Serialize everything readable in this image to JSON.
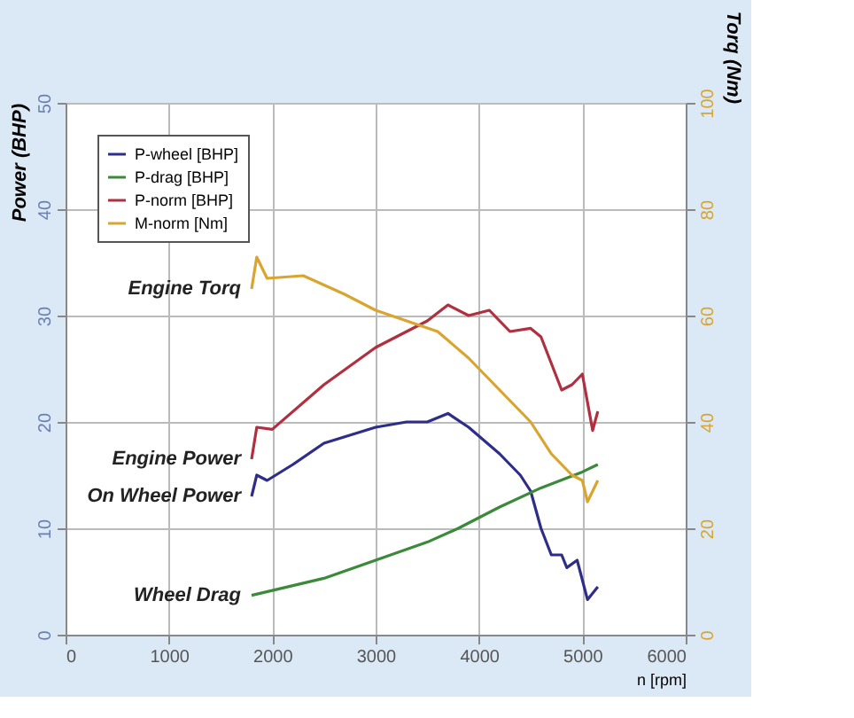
{
  "chart_data": {
    "type": "line",
    "xlabel": "n [rpm]",
    "ylabel": "Power (BHP)",
    "y2label": "Torq (Nm)",
    "xlim": [
      0,
      6000
    ],
    "xticks": [
      0,
      1000,
      2000,
      3000,
      4000,
      5000,
      6000
    ],
    "ylim": [
      0,
      50
    ],
    "yticks": [
      0,
      10,
      20,
      30,
      40,
      50
    ],
    "y2lim": [
      0,
      100
    ],
    "y2ticks": [
      0,
      20,
      40,
      60,
      80,
      100
    ],
    "grid": true,
    "legend": "top left",
    "line_style": "solid",
    "marker": "none",
    "series": [
      {
        "name": "P-wheel [BHP]",
        "color": "#2e2e8a",
        "x": [
          1800,
          1850,
          1950,
          2200,
          2500,
          3000,
          3300,
          3500,
          3700,
          3900,
          4200,
          4400,
          4500,
          4600,
          4700,
          4800,
          4850,
          4950,
          5050,
          5150
        ],
        "values": [
          13,
          15,
          14.5,
          16,
          18,
          19.5,
          20,
          20,
          20.8,
          19.5,
          17,
          15,
          13.5,
          10,
          7.5,
          7.5,
          6.3,
          7,
          3.3,
          4.5
        ]
      },
      {
        "name": "P-drag [BHP]",
        "color": "#3a8a3a",
        "x": [
          1800,
          2500,
          3000,
          3500,
          3800,
          4200,
          4600,
          5000,
          5150
        ],
        "values": [
          3.7,
          5.3,
          7,
          8.7,
          10,
          12,
          13.8,
          15.3,
          16
        ]
      },
      {
        "name": "P-norm [BHP]",
        "color": "#b03040",
        "x": [
          1800,
          1850,
          2000,
          2500,
          3000,
          3300,
          3500,
          3700,
          3900,
          4100,
          4300,
          4500,
          4600,
          4800,
          4900,
          5000,
          5100,
          5150
        ],
        "values": [
          16.5,
          19.5,
          19.3,
          23.5,
          27,
          28.5,
          29.5,
          31,
          30,
          30.5,
          28.5,
          28.8,
          28,
          23,
          23.5,
          24.5,
          19.2,
          21
        ]
      },
      {
        "name": "M-norm [Nm]",
        "color": "#d9a530",
        "axis": "y2",
        "x": [
          1800,
          1850,
          1950,
          2300,
          2700,
          3000,
          3300,
          3600,
          3900,
          4200,
          4500,
          4700,
          4900,
          5000,
          5050,
          5100,
          5150
        ],
        "values": [
          65,
          71,
          67,
          67.5,
          64,
          61,
          59,
          57,
          52,
          46,
          40,
          34,
          30,
          29,
          25,
          27,
          29
        ]
      }
    ],
    "annotations": [
      "Engine Torq",
      "Engine Power",
      "On Wheel Power",
      "Wheel Drag"
    ]
  }
}
